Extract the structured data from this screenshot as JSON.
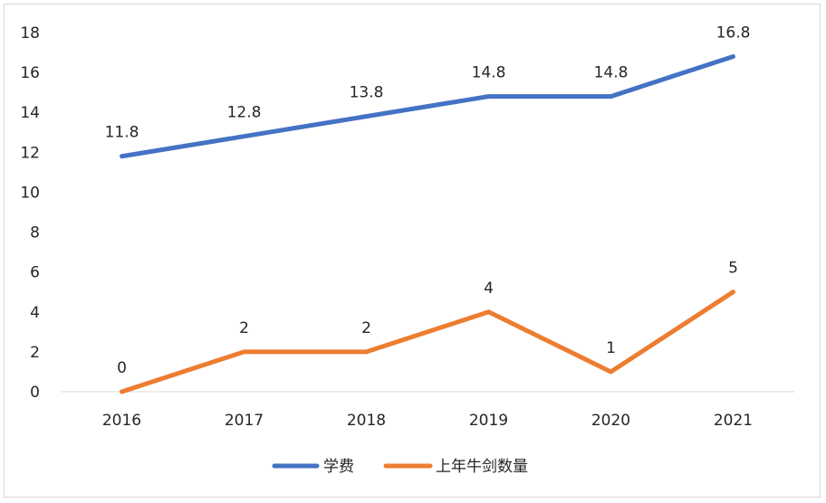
{
  "chart_data": {
    "type": "line",
    "title": "",
    "xlabel": "",
    "ylabel": "",
    "categories": [
      "2016",
      "2017",
      "2018",
      "2019",
      "2020",
      "2021"
    ],
    "ylim": [
      0,
      18
    ],
    "yticks": [
      0,
      2,
      4,
      6,
      8,
      10,
      12,
      14,
      16,
      18
    ],
    "grid": false,
    "legend_position": "bottom",
    "series": [
      {
        "name": "学费",
        "color": "#4472C4",
        "values": [
          11.8,
          12.8,
          13.8,
          14.8,
          14.8,
          16.8
        ],
        "labels": [
          "11.8",
          "12.8",
          "13.8",
          "14.8",
          "14.8",
          "16.8"
        ]
      },
      {
        "name": "上年牛剑数量",
        "color": "#ED7D31",
        "values": [
          0,
          2,
          2,
          4,
          1,
          5
        ],
        "labels": [
          "0",
          "2",
          "2",
          "4",
          "1",
          "5"
        ]
      }
    ]
  }
}
